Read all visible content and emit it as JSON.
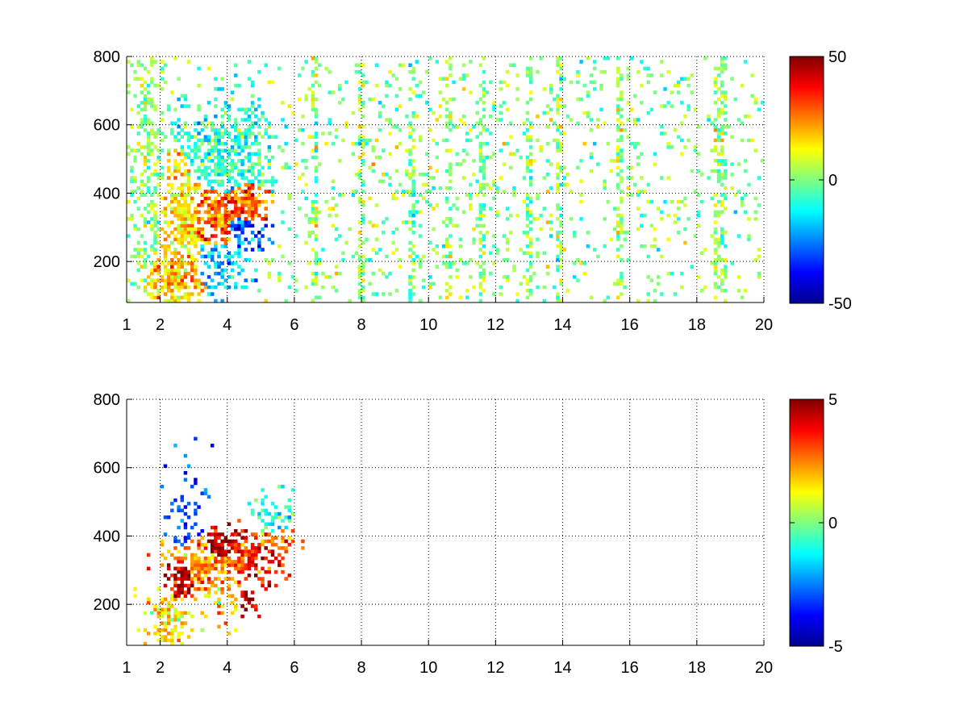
{
  "chart_data": [
    {
      "type": "heatmap",
      "title": "",
      "xlabel": "",
      "ylabel": "",
      "xlim": [
        1,
        20
      ],
      "ylim": [
        80,
        800
      ],
      "x_ticks": [
        "1",
        "2",
        "4",
        "6",
        "8",
        "10",
        "12",
        "14",
        "16",
        "18",
        "20"
      ],
      "y_ticks": [
        "200",
        "400",
        "600",
        "800"
      ],
      "grid": true,
      "colormap": "jet",
      "colorbar": {
        "min": -50,
        "max": 50,
        "ticks": [
          "50",
          "0",
          "-50"
        ]
      },
      "clusters": [
        {
          "x": 2.5,
          "y": 150,
          "sx": 0.6,
          "sy": 60,
          "weight": 0.9,
          "value": 18
        },
        {
          "x": 2.7,
          "y": 330,
          "sx": 0.5,
          "sy": 130,
          "weight": 0.8,
          "value": 15
        },
        {
          "x": 3.6,
          "y": 330,
          "sx": 0.6,
          "sy": 70,
          "weight": 0.9,
          "value": 28
        },
        {
          "x": 4.5,
          "y": 370,
          "sx": 0.5,
          "sy": 50,
          "weight": 0.9,
          "value": 30
        },
        {
          "x": 4.4,
          "y": 300,
          "sx": 0.5,
          "sy": 50,
          "weight": 0.7,
          "value": -28
        },
        {
          "x": 4.0,
          "y": 500,
          "sx": 1.0,
          "sy": 110,
          "weight": 0.7,
          "value": -8
        },
        {
          "x": 3.7,
          "y": 200,
          "sx": 0.6,
          "sy": 70,
          "weight": 0.6,
          "value": -18
        },
        {
          "x": 1.6,
          "y": 450,
          "sx": 0.4,
          "sy": 300,
          "weight": 0.5,
          "value": 2
        },
        {
          "x": 12.0,
          "y": 440,
          "sx": 8.0,
          "sy": 380,
          "weight": 0.12,
          "value": 1
        }
      ],
      "stripes": [
        6.6,
        8.0,
        9.5,
        10.6,
        11.6,
        13.0,
        13.9,
        15.7,
        18.6,
        18.8
      ]
    },
    {
      "type": "heatmap",
      "title": "",
      "xlabel": "",
      "ylabel": "",
      "xlim": [
        1,
        20
      ],
      "ylim": [
        80,
        800
      ],
      "x_ticks": [
        "1",
        "2",
        "4",
        "6",
        "8",
        "10",
        "12",
        "14",
        "16",
        "18",
        "20"
      ],
      "y_ticks": [
        "200",
        "400",
        "600",
        "800"
      ],
      "grid": true,
      "colormap": "jet",
      "colorbar": {
        "min": -5,
        "max": 5,
        "ticks": [
          "5",
          "0",
          "-5"
        ]
      },
      "clusters": [
        {
          "x": 2.6,
          "y": 280,
          "sx": 0.3,
          "sy": 40,
          "weight": 0.8,
          "value": 4.5
        },
        {
          "x": 3.8,
          "y": 370,
          "sx": 0.4,
          "sy": 40,
          "weight": 0.8,
          "value": 4.5
        },
        {
          "x": 4.6,
          "y": 340,
          "sx": 0.6,
          "sy": 50,
          "weight": 0.8,
          "value": 3.5
        },
        {
          "x": 3.5,
          "y": 320,
          "sx": 0.8,
          "sy": 60,
          "weight": 0.7,
          "value": 2.5
        },
        {
          "x": 2.3,
          "y": 150,
          "sx": 0.4,
          "sy": 60,
          "weight": 0.6,
          "value": 1.5
        },
        {
          "x": 2.8,
          "y": 450,
          "sx": 0.4,
          "sy": 90,
          "weight": 0.4,
          "value": -3
        },
        {
          "x": 5.3,
          "y": 440,
          "sx": 0.4,
          "sy": 50,
          "weight": 0.5,
          "value": -1
        },
        {
          "x": 5.4,
          "y": 390,
          "sx": 0.4,
          "sy": 30,
          "weight": 0.6,
          "value": 2.5
        },
        {
          "x": 3.8,
          "y": 230,
          "sx": 0.5,
          "sy": 50,
          "weight": 0.4,
          "value": 1.5
        },
        {
          "x": 4.6,
          "y": 200,
          "sx": 0.2,
          "sy": 30,
          "weight": 0.5,
          "value": 4.5
        }
      ],
      "stripes": []
    }
  ]
}
